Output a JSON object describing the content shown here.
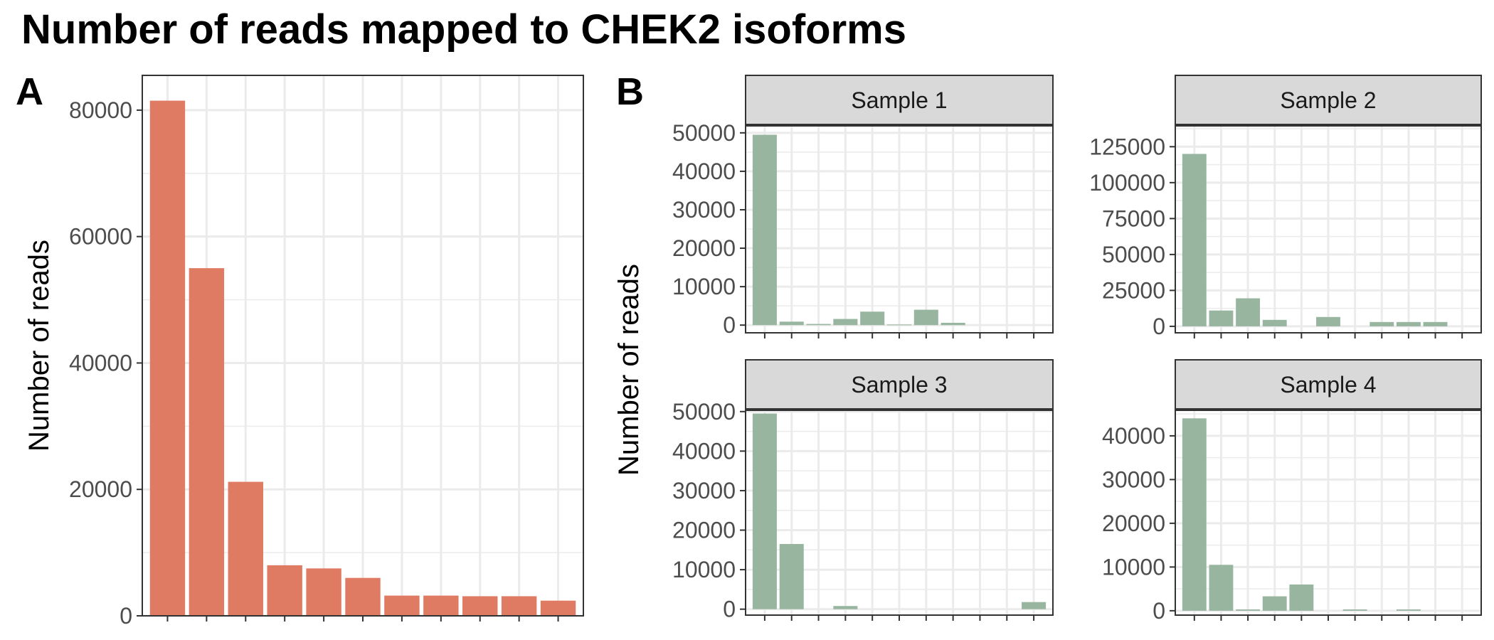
{
  "title": "Number of reads mapped to CHEK2 isoforms",
  "panels": {
    "a": "A",
    "b": "B"
  },
  "colors": {
    "panel_a_bar": "#e07b63",
    "panel_b_bar": "#98b5a0",
    "strip_bg": "#d9d9d9",
    "grid": "#ebebeb"
  },
  "chart_data": [
    {
      "type": "bar",
      "panel": "A",
      "ylabel": "Number of reads",
      "xlabel": "",
      "categories": [
        "",
        "",
        "",
        "",
        "",
        "",
        "",
        "",
        "",
        "",
        ""
      ],
      "values": [
        81500,
        55000,
        21200,
        8000,
        7500,
        6000,
        3200,
        3200,
        3100,
        3100,
        2400
      ],
      "ylim": [
        0,
        85500
      ],
      "yticks": [
        0,
        20000,
        40000,
        60000,
        80000
      ],
      "grid": true
    },
    {
      "type": "bar",
      "panel": "B",
      "ylabel": "Number of reads",
      "facets": [
        {
          "title": "Sample 1",
          "values": [
            49500,
            900,
            300,
            1600,
            3500,
            150,
            4000,
            600,
            0,
            0,
            0
          ],
          "ylim": [
            -2000,
            52000
          ],
          "yticks": [
            0,
            10000,
            20000,
            30000,
            40000,
            50000
          ]
        },
        {
          "title": "Sample 2",
          "values": [
            120000,
            11000,
            19500,
            4500,
            0,
            6500,
            0,
            3000,
            3000,
            3000,
            0
          ],
          "ylim": [
            -4500,
            140000
          ],
          "yticks": [
            0,
            25000,
            50000,
            75000,
            100000,
            125000
          ]
        },
        {
          "title": "Sample 3",
          "values": [
            49500,
            16500,
            0,
            800,
            0,
            0,
            0,
            0,
            0,
            0,
            1800
          ],
          "ylim": [
            -1500,
            50500
          ],
          "yticks": [
            0,
            10000,
            20000,
            30000,
            40000,
            50000
          ]
        },
        {
          "title": "Sample 4",
          "values": [
            44000,
            10500,
            300,
            3300,
            6000,
            0,
            300,
            0,
            300,
            0,
            0
          ],
          "ylim": [
            -1000,
            46000
          ],
          "yticks": [
            0,
            10000,
            20000,
            30000,
            40000
          ]
        }
      ],
      "grid": true
    }
  ]
}
